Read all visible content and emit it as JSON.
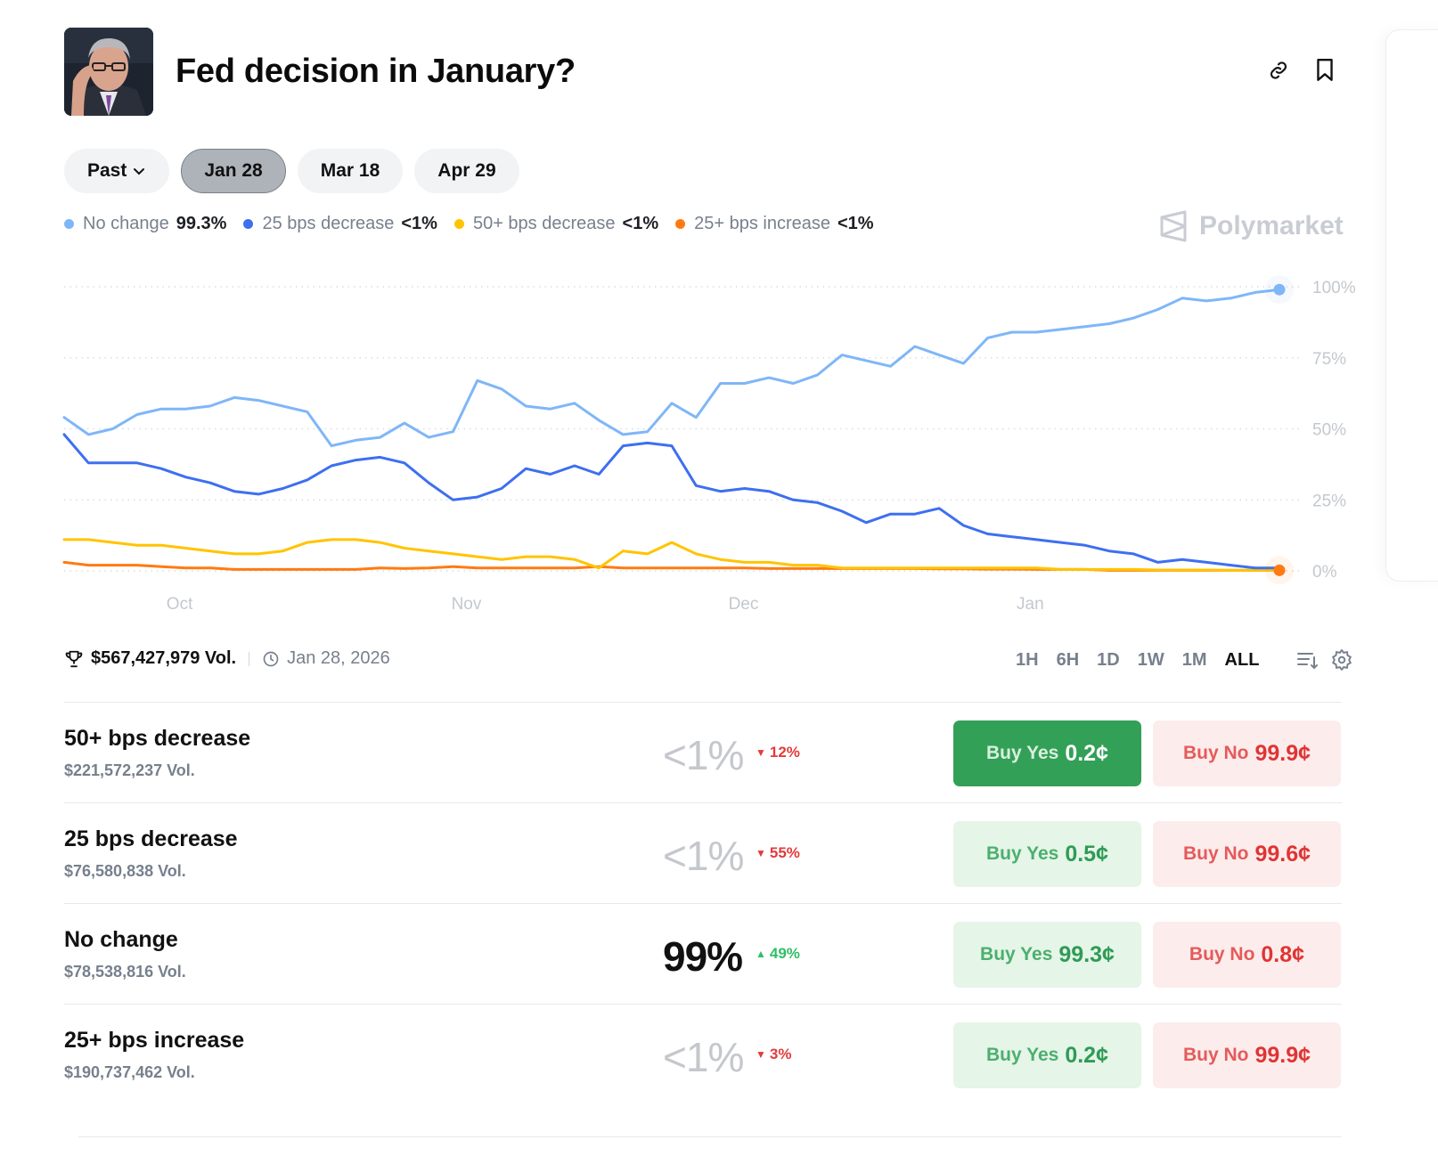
{
  "header": {
    "title": "Fed decision in January?",
    "avatar_alt": "Jerome Powell portrait",
    "actions": [
      {
        "icon": "link-icon",
        "label": "Copy link"
      },
      {
        "icon": "bookmark-icon",
        "label": "Bookmark"
      }
    ]
  },
  "date_tabs": [
    {
      "label": "Past",
      "has_dropdown": true,
      "active": false
    },
    {
      "label": "Jan 28",
      "active": true
    },
    {
      "label": "Mar 18",
      "active": false
    },
    {
      "label": "Apr 29",
      "active": false
    }
  ],
  "legend": [
    {
      "name": "No change",
      "value": "99.3%",
      "color": "#7fb6f8"
    },
    {
      "name": "25 bps decrease",
      "value": "<1%",
      "color": "#3d6ff0"
    },
    {
      "name": "50+ bps decrease",
      "value": "<1%",
      "color": "#ffc400"
    },
    {
      "name": "25+ bps increase",
      "value": "<1%",
      "color": "#ff7a12"
    }
  ],
  "watermark": "Polymarket",
  "chart_data": {
    "type": "line",
    "title": "",
    "xlabel": "",
    "ylabel": "",
    "ylim": [
      0,
      100
    ],
    "y_ticks": [
      "0%",
      "25%",
      "50%",
      "75%",
      "100%"
    ],
    "y_tick_values": [
      0,
      25,
      50,
      75,
      100
    ],
    "x_ticks": [
      "Oct",
      "Nov",
      "Dec",
      "Jan"
    ],
    "x_tick_positions": [
      0.095,
      0.331,
      0.559,
      0.795
    ],
    "grid": true,
    "legend_position": "top-left",
    "x": [
      0.0,
      0.02,
      0.04,
      0.06,
      0.08,
      0.1,
      0.12,
      0.14,
      0.16,
      0.18,
      0.2,
      0.22,
      0.24,
      0.26,
      0.28,
      0.3,
      0.32,
      0.34,
      0.36,
      0.38,
      0.4,
      0.42,
      0.44,
      0.46,
      0.48,
      0.5,
      0.52,
      0.54,
      0.56,
      0.58,
      0.6,
      0.62,
      0.64,
      0.66,
      0.68,
      0.7,
      0.72,
      0.74,
      0.76,
      0.78,
      0.8,
      0.82,
      0.84,
      0.86,
      0.88,
      0.9,
      0.92,
      0.94,
      0.96,
      0.98,
      1.0
    ],
    "series": [
      {
        "name": "No change",
        "color": "#7fb6f8",
        "values": [
          54,
          48,
          50,
          55,
          57,
          57,
          58,
          61,
          60,
          58,
          56,
          44,
          46,
          47,
          52,
          47,
          49,
          67,
          64,
          58,
          57,
          59,
          53,
          48,
          49,
          59,
          54,
          66,
          66,
          68,
          66,
          69,
          76,
          74,
          72,
          79,
          76,
          73,
          82,
          84,
          84,
          85,
          86,
          87,
          89,
          92,
          96,
          95,
          96,
          98,
          99
        ]
      },
      {
        "name": "25 bps decrease",
        "color": "#3d6ff0",
        "values": [
          48,
          38,
          38,
          38,
          36,
          33,
          31,
          28,
          27,
          29,
          32,
          37,
          39,
          40,
          38,
          31,
          25,
          26,
          29,
          36,
          34,
          37,
          34,
          44,
          45,
          44,
          30,
          28,
          29,
          28,
          25,
          24,
          21,
          17,
          20,
          20,
          22,
          16,
          13,
          12,
          11,
          10,
          9,
          7,
          6,
          3,
          4,
          3,
          2,
          1,
          1
        ]
      },
      {
        "name": "50+ bps decrease",
        "color": "#ffc400",
        "values": [
          11,
          11,
          10,
          9,
          9,
          8,
          7,
          6,
          6,
          7,
          10,
          11,
          11,
          10,
          8,
          7,
          6,
          5,
          4,
          5,
          5,
          4,
          1,
          7,
          6,
          10,
          6,
          4,
          3,
          3,
          2,
          2,
          1,
          1,
          1,
          1,
          1,
          1,
          1,
          1,
          1,
          0.5,
          0.5,
          0.5,
          0.5,
          0.3,
          0.3,
          0.3,
          0.2,
          0.2,
          0.2
        ]
      },
      {
        "name": "25+ bps increase",
        "color": "#ff7a12",
        "values": [
          3,
          2,
          2,
          2,
          1.5,
          1,
          1,
          0.5,
          0.5,
          0.5,
          0.5,
          0.5,
          0.5,
          1,
          0.8,
          1,
          1.5,
          1,
          1,
          1,
          1,
          1,
          1.5,
          1,
          1,
          1,
          1,
          1,
          1,
          0.8,
          0.8,
          0.8,
          0.8,
          0.8,
          0.8,
          0.8,
          0.7,
          0.7,
          0.6,
          0.6,
          0.5,
          0.5,
          0.5,
          0.2,
          0.2,
          0.2,
          0.2,
          0.2,
          0.2,
          0.2,
          0.2
        ]
      }
    ]
  },
  "stats": {
    "volume": "$567,427,979 Vol.",
    "end_date": "Jan 28, 2026"
  },
  "time_ranges": [
    {
      "label": "1H",
      "active": false
    },
    {
      "label": "6H",
      "active": false
    },
    {
      "label": "1D",
      "active": false
    },
    {
      "label": "1W",
      "active": false
    },
    {
      "label": "1M",
      "active": false
    },
    {
      "label": "ALL",
      "active": true
    }
  ],
  "outcomes": [
    {
      "name": "50+ bps decrease",
      "volume": "$221,572,237 Vol.",
      "probability": "<1%",
      "change": "12%",
      "direction": "down",
      "yes_label": "Buy Yes",
      "yes_price": "0.2¢",
      "no_label": "Buy No",
      "no_price": "99.9¢",
      "yes_selected": true
    },
    {
      "name": "25 bps decrease",
      "volume": "$76,580,838 Vol.",
      "probability": "<1%",
      "change": "55%",
      "direction": "down",
      "yes_label": "Buy Yes",
      "yes_price": "0.5¢",
      "no_label": "Buy No",
      "no_price": "99.6¢",
      "yes_selected": false
    },
    {
      "name": "No change",
      "volume": "$78,538,816 Vol.",
      "probability": "99%",
      "change": "49%",
      "direction": "up",
      "yes_label": "Buy Yes",
      "yes_price": "99.3¢",
      "no_label": "Buy No",
      "no_price": "0.8¢",
      "yes_selected": false
    },
    {
      "name": "25+ bps increase",
      "volume": "$190,737,462 Vol.",
      "probability": "<1%",
      "change": "3%",
      "direction": "down",
      "yes_label": "Buy Yes",
      "yes_price": "0.2¢",
      "no_label": "Buy No",
      "no_price": "99.9¢",
      "yes_selected": false
    }
  ]
}
